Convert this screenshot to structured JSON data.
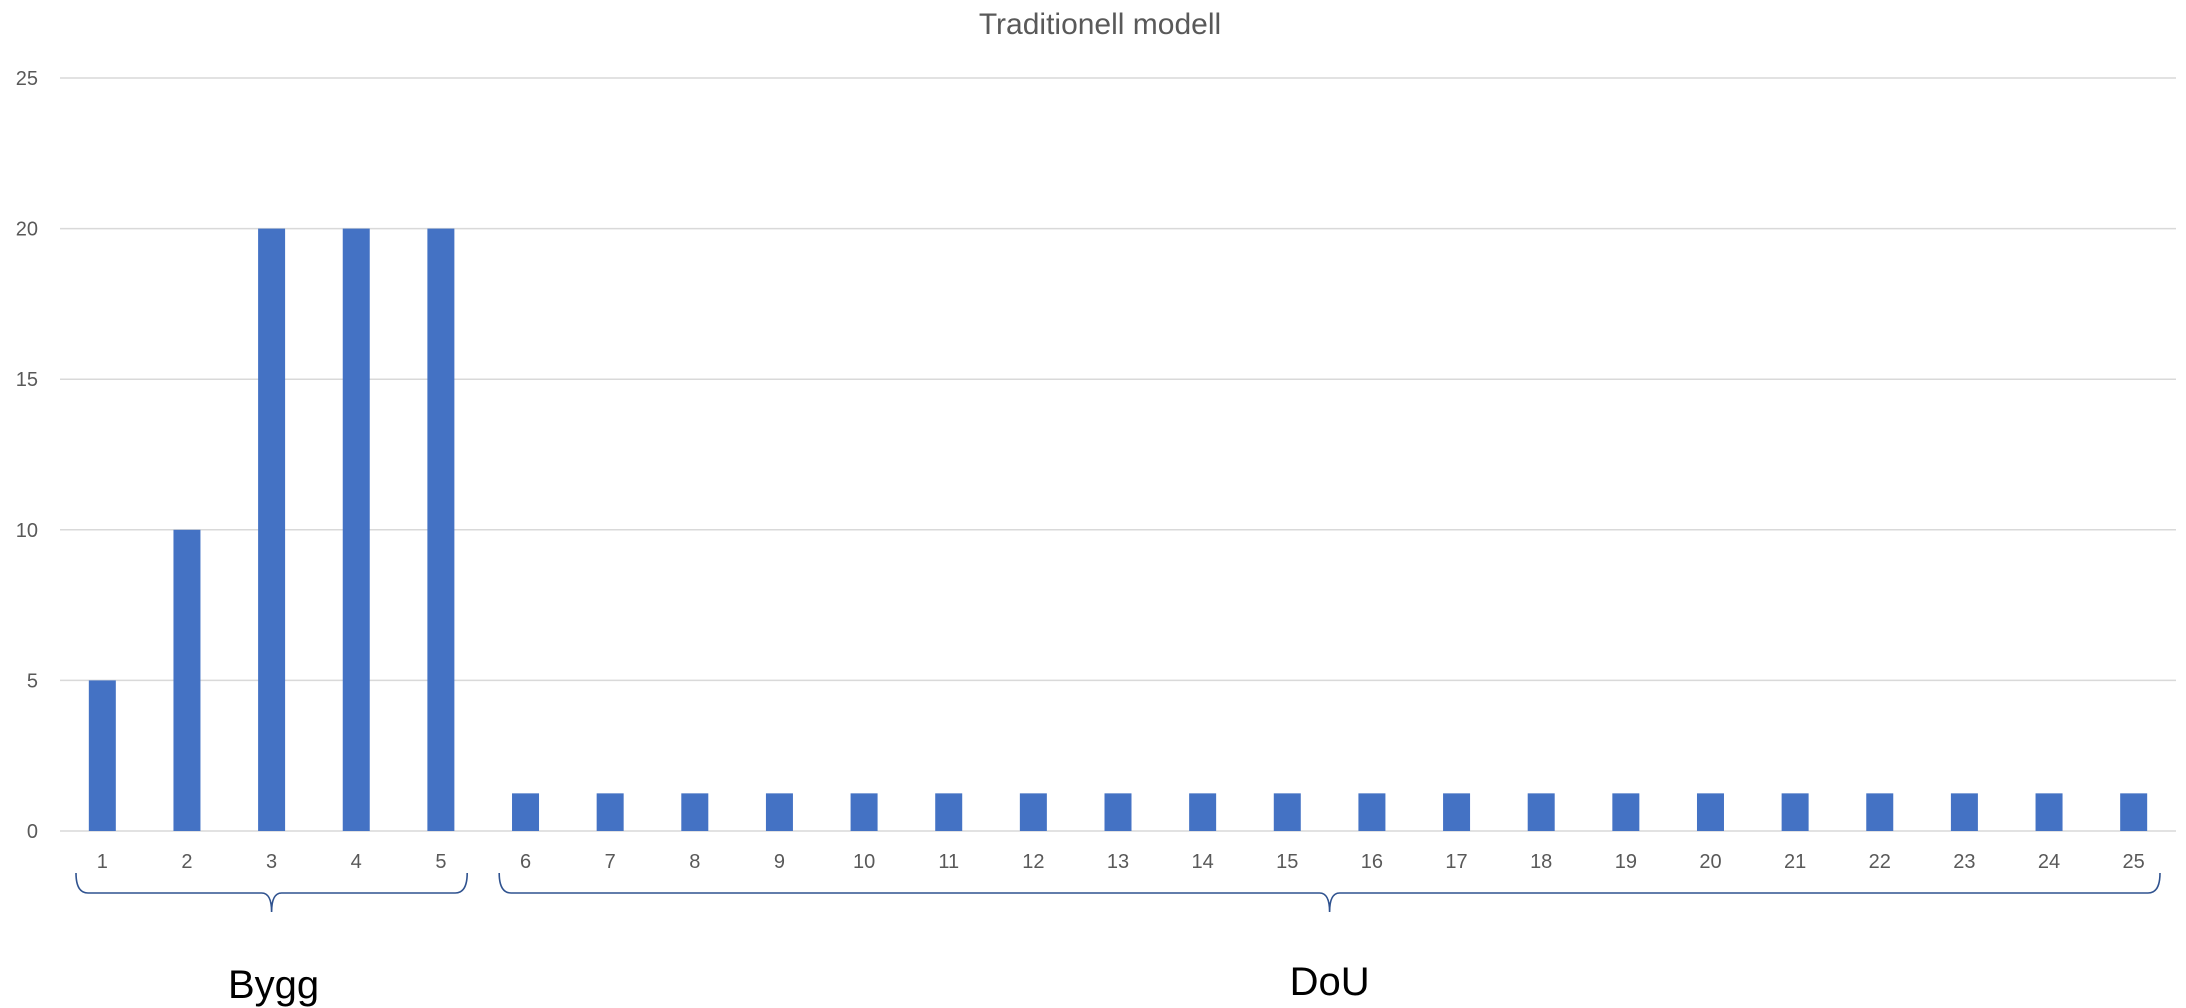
{
  "chart_data": {
    "type": "bar",
    "title": "Traditionell modell",
    "xlabel": "",
    "ylabel": "",
    "categories": [
      "1",
      "2",
      "3",
      "4",
      "5",
      "6",
      "7",
      "8",
      "9",
      "10",
      "11",
      "12",
      "13",
      "14",
      "15",
      "16",
      "17",
      "18",
      "19",
      "20",
      "21",
      "22",
      "23",
      "24",
      "25"
    ],
    "values": [
      5,
      10,
      20,
      20,
      20,
      1.25,
      1.25,
      1.25,
      1.25,
      1.25,
      1.25,
      1.25,
      1.25,
      1.25,
      1.25,
      1.25,
      1.25,
      1.25,
      1.25,
      1.25,
      1.25,
      1.25,
      1.25,
      1.25,
      1.25
    ],
    "ylim": [
      0,
      25
    ],
    "yticks": [
      "0",
      "5",
      "10",
      "15",
      "20",
      "25"
    ],
    "grid": true,
    "legend": "none",
    "bar_color": "#4472c4",
    "groups": [
      {
        "label": "Bygg",
        "from": "1",
        "to": "5"
      },
      {
        "label": "DoU",
        "from": "6",
        "to": "25"
      }
    ]
  }
}
